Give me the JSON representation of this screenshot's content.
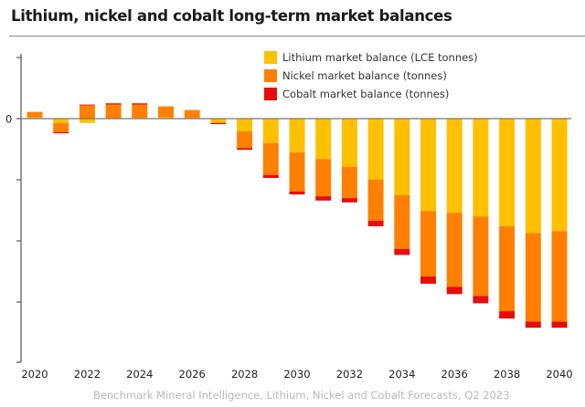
{
  "title": "Lithium, nickel and cobalt long-term market balances",
  "source": "Benchmark Mineral Intelligence, Lithium, Nickel and Cobalt Forecasts, Q2 2023",
  "chart_data": {
    "type": "bar",
    "stacked": true,
    "title": "Lithium, nickel and cobalt long-term market balances",
    "xlabel": "",
    "ylabel": "",
    "categories": [
      "2020",
      "2021",
      "2022",
      "2023",
      "2024",
      "2025",
      "2026",
      "2027",
      "2028",
      "2029",
      "2030",
      "2031",
      "2032",
      "2033",
      "2034",
      "2035",
      "2036",
      "2037",
      "2038",
      "2039",
      "2040"
    ],
    "x_tick_labels": [
      "2020",
      "2022",
      "2024",
      "2026",
      "2028",
      "2030",
      "2032",
      "2034",
      "2036",
      "2038",
      "2040"
    ],
    "y_tick_labels": [
      "0"
    ],
    "y_ticks": [
      1,
      0,
      -1,
      -2,
      -3
    ],
    "ylim": [
      -4,
      1
    ],
    "grid": false,
    "legend_placement": "top-right",
    "series": [
      {
        "name": "Lithium market balance (LCE tonnes)",
        "color": "#FFC000",
        "values": [
          0.02,
          -0.07,
          -0.07,
          0.0,
          0.01,
          0.02,
          0.01,
          -0.07,
          -0.21,
          -0.4,
          -0.55,
          -0.66,
          -0.79,
          -1.0,
          -1.25,
          -1.51,
          -1.54,
          -1.6,
          -1.76,
          -1.87,
          -1.84
        ]
      },
      {
        "name": "Nickel market balance (tonnes)",
        "color": "#FF8000",
        "values": [
          0.09,
          -0.15,
          0.22,
          0.23,
          0.22,
          0.18,
          0.13,
          0.0,
          -0.27,
          -0.52,
          -0.64,
          -0.61,
          -0.51,
          -0.67,
          -0.88,
          -1.07,
          -1.21,
          -1.3,
          -1.39,
          -1.45,
          -1.48
        ]
      },
      {
        "name": "Cobalt market balance (tonnes)",
        "color": "#E60D0D",
        "values": [
          0.0,
          -0.02,
          0.01,
          0.02,
          0.02,
          0.0,
          0.0,
          -0.02,
          -0.03,
          -0.05,
          -0.05,
          -0.07,
          -0.07,
          -0.09,
          -0.1,
          -0.12,
          -0.12,
          -0.12,
          -0.12,
          -0.1,
          -0.1
        ]
      }
    ]
  }
}
